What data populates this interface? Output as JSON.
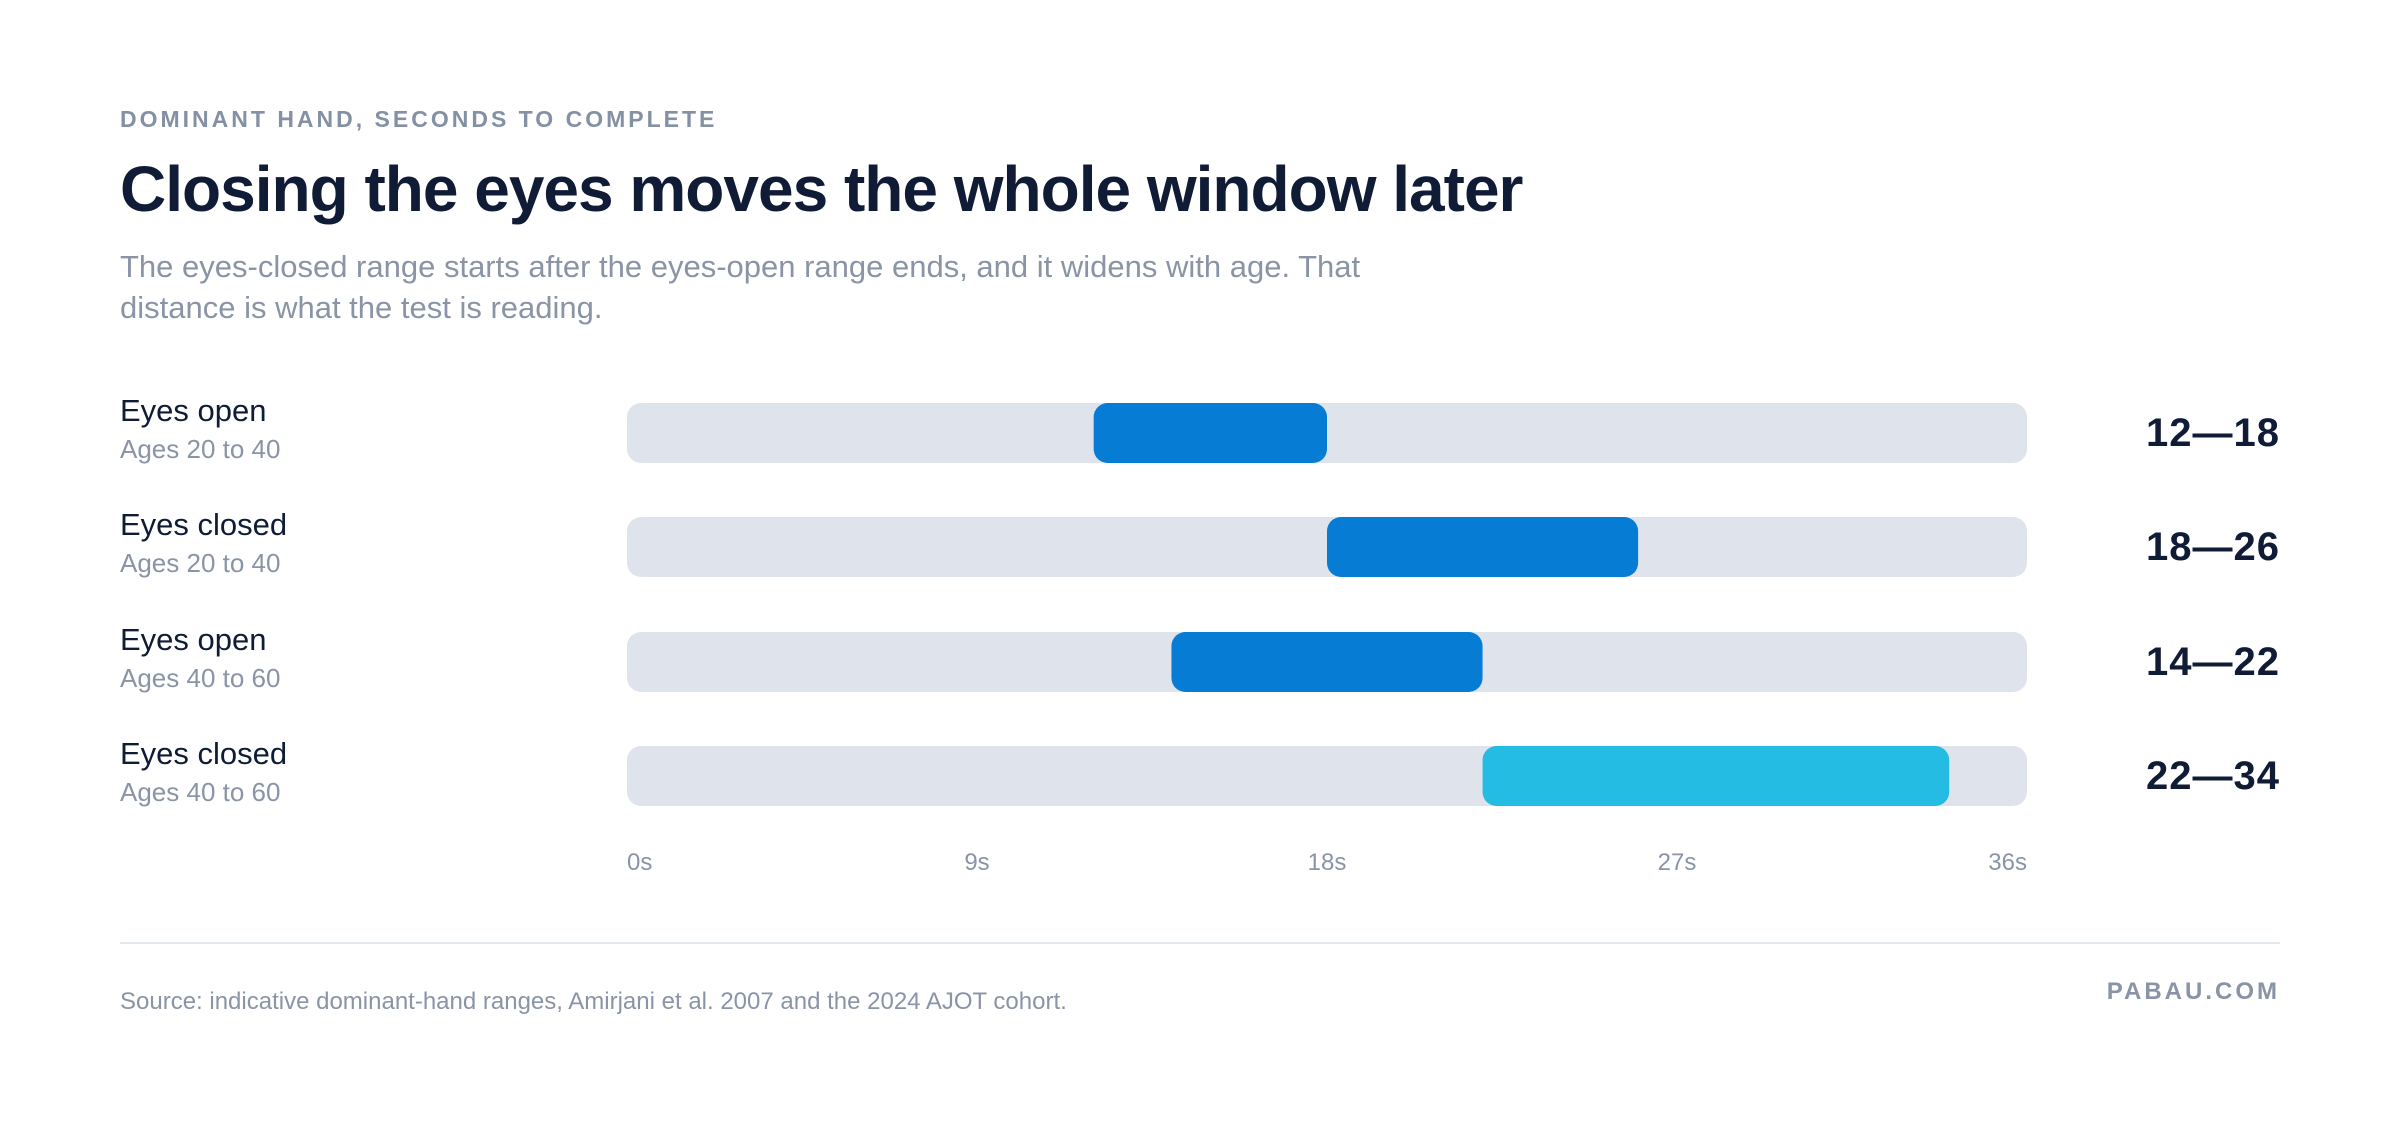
{
  "eyebrow": "DOMINANT HAND, SECONDS TO COMPLETE",
  "title": "Closing the eyes moves the whole window later",
  "subtitle": "The eyes-closed range starts after the eyes-open range ends, and it widens with age. That distance is what the test is reading.",
  "colors": {
    "track": "#dfe3ec",
    "bar_primary": "#077cd4",
    "bar_highlight": "#24bce2"
  },
  "chart_data": {
    "type": "bar",
    "orientation": "horizontal-range",
    "xlim": [
      0,
      36
    ],
    "x_ticks": [
      "0s",
      "9s",
      "18s",
      "27s",
      "36s"
    ],
    "x_tick_values": [
      0,
      9,
      18,
      27,
      36
    ],
    "rows": [
      {
        "label": "Eyes open",
        "sublabel": "Ages 20 to 40",
        "start": 12,
        "end": 18,
        "range_text": "12—18",
        "color": "#077cd4"
      },
      {
        "label": "Eyes closed",
        "sublabel": "Ages 20 to 40",
        "start": 18,
        "end": 26,
        "range_text": "18—26",
        "color": "#077cd4"
      },
      {
        "label": "Eyes open",
        "sublabel": "Ages 40 to 60",
        "start": 14,
        "end": 22,
        "range_text": "14—22",
        "color": "#077cd4"
      },
      {
        "label": "Eyes closed",
        "sublabel": "Ages 40 to 60",
        "start": 22,
        "end": 34,
        "range_text": "22—34",
        "color": "#24bce2"
      }
    ]
  },
  "footer": {
    "source": "Source: indicative dominant-hand ranges, Amirjani et al. 2007 and the 2024 AJOT cohort.",
    "brand": "PABAU.COM"
  }
}
